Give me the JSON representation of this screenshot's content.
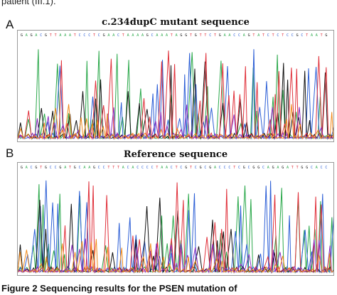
{
  "top_fragment": "patient (III.1).",
  "panels": [
    {
      "letter": "A",
      "title": "c.234dupC mutant sequence"
    },
    {
      "letter": "B",
      "title": "Reference sequence"
    }
  ],
  "caption": "Figure 2 Sequencing results for the PSEN mutation of",
  "colors": {
    "A": "#2aa84a",
    "C": "#2d5fd6",
    "G": "#111111",
    "T": "#e0303a",
    "alt": "#8a2bbf",
    "orange": "#f08a1c"
  }
}
